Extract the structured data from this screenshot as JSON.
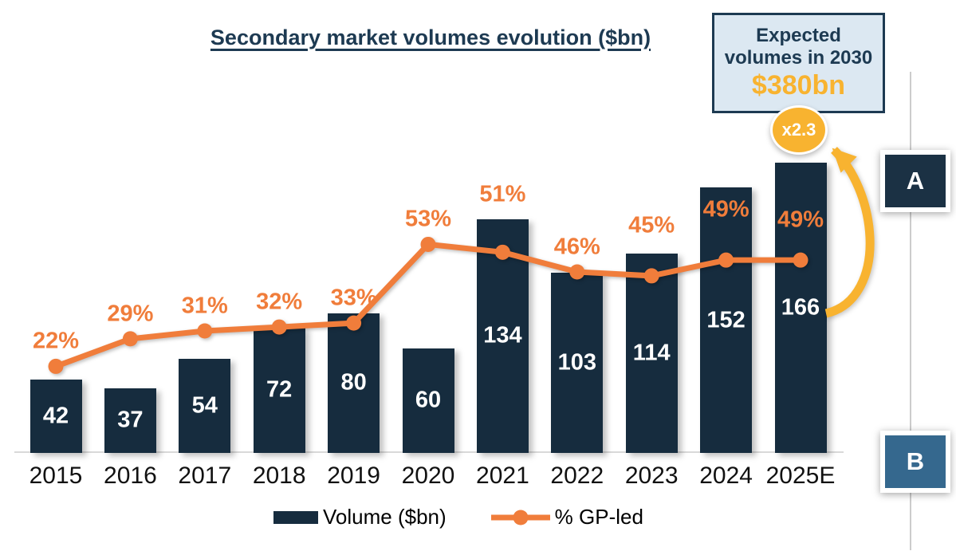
{
  "chart_data": {
    "type": "bar+line",
    "title": "Secondary market volumes evolution ($bn)",
    "categories": [
      "2015",
      "2016",
      "2017",
      "2018",
      "2019",
      "2020",
      "2021",
      "2022",
      "2023",
      "2024",
      "2025E"
    ],
    "series": [
      {
        "name": "Volume ($bn)",
        "type": "bar",
        "color": "#162c3e",
        "values": [
          42,
          37,
          54,
          72,
          80,
          60,
          134,
          103,
          114,
          152,
          166
        ]
      },
      {
        "name": "% GP-led",
        "type": "line",
        "color": "#f07d3b",
        "unit": "%",
        "values": [
          22,
          29,
          31,
          32,
          33,
          53,
          51,
          46,
          45,
          49,
          49
        ]
      }
    ],
    "value_labels": "shown",
    "grid": false,
    "legend_position": "bottom",
    "ylim_bar": [
      0,
      260
    ],
    "ylim_pct": [
      0,
      115
    ],
    "pct_label_dy_overrides": {
      "6": -72,
      "8": -63,
      "9": -63,
      "10": -50
    }
  },
  "callout": {
    "label": "Expected volumes in 2030",
    "value": "$380bn"
  },
  "multiplier_badge": "x2.3",
  "annotations": {
    "marker_a": "A",
    "marker_b": "B"
  },
  "colors": {
    "bar_navy": "#162c3e",
    "orange": "#f07d3b",
    "yellow": "#f8b330",
    "callout_bg": "#dce8f2",
    "navy_text": "#1d3a52",
    "annotation_b_blue": "#35688e",
    "axis_gray": "#d9d9d9"
  }
}
